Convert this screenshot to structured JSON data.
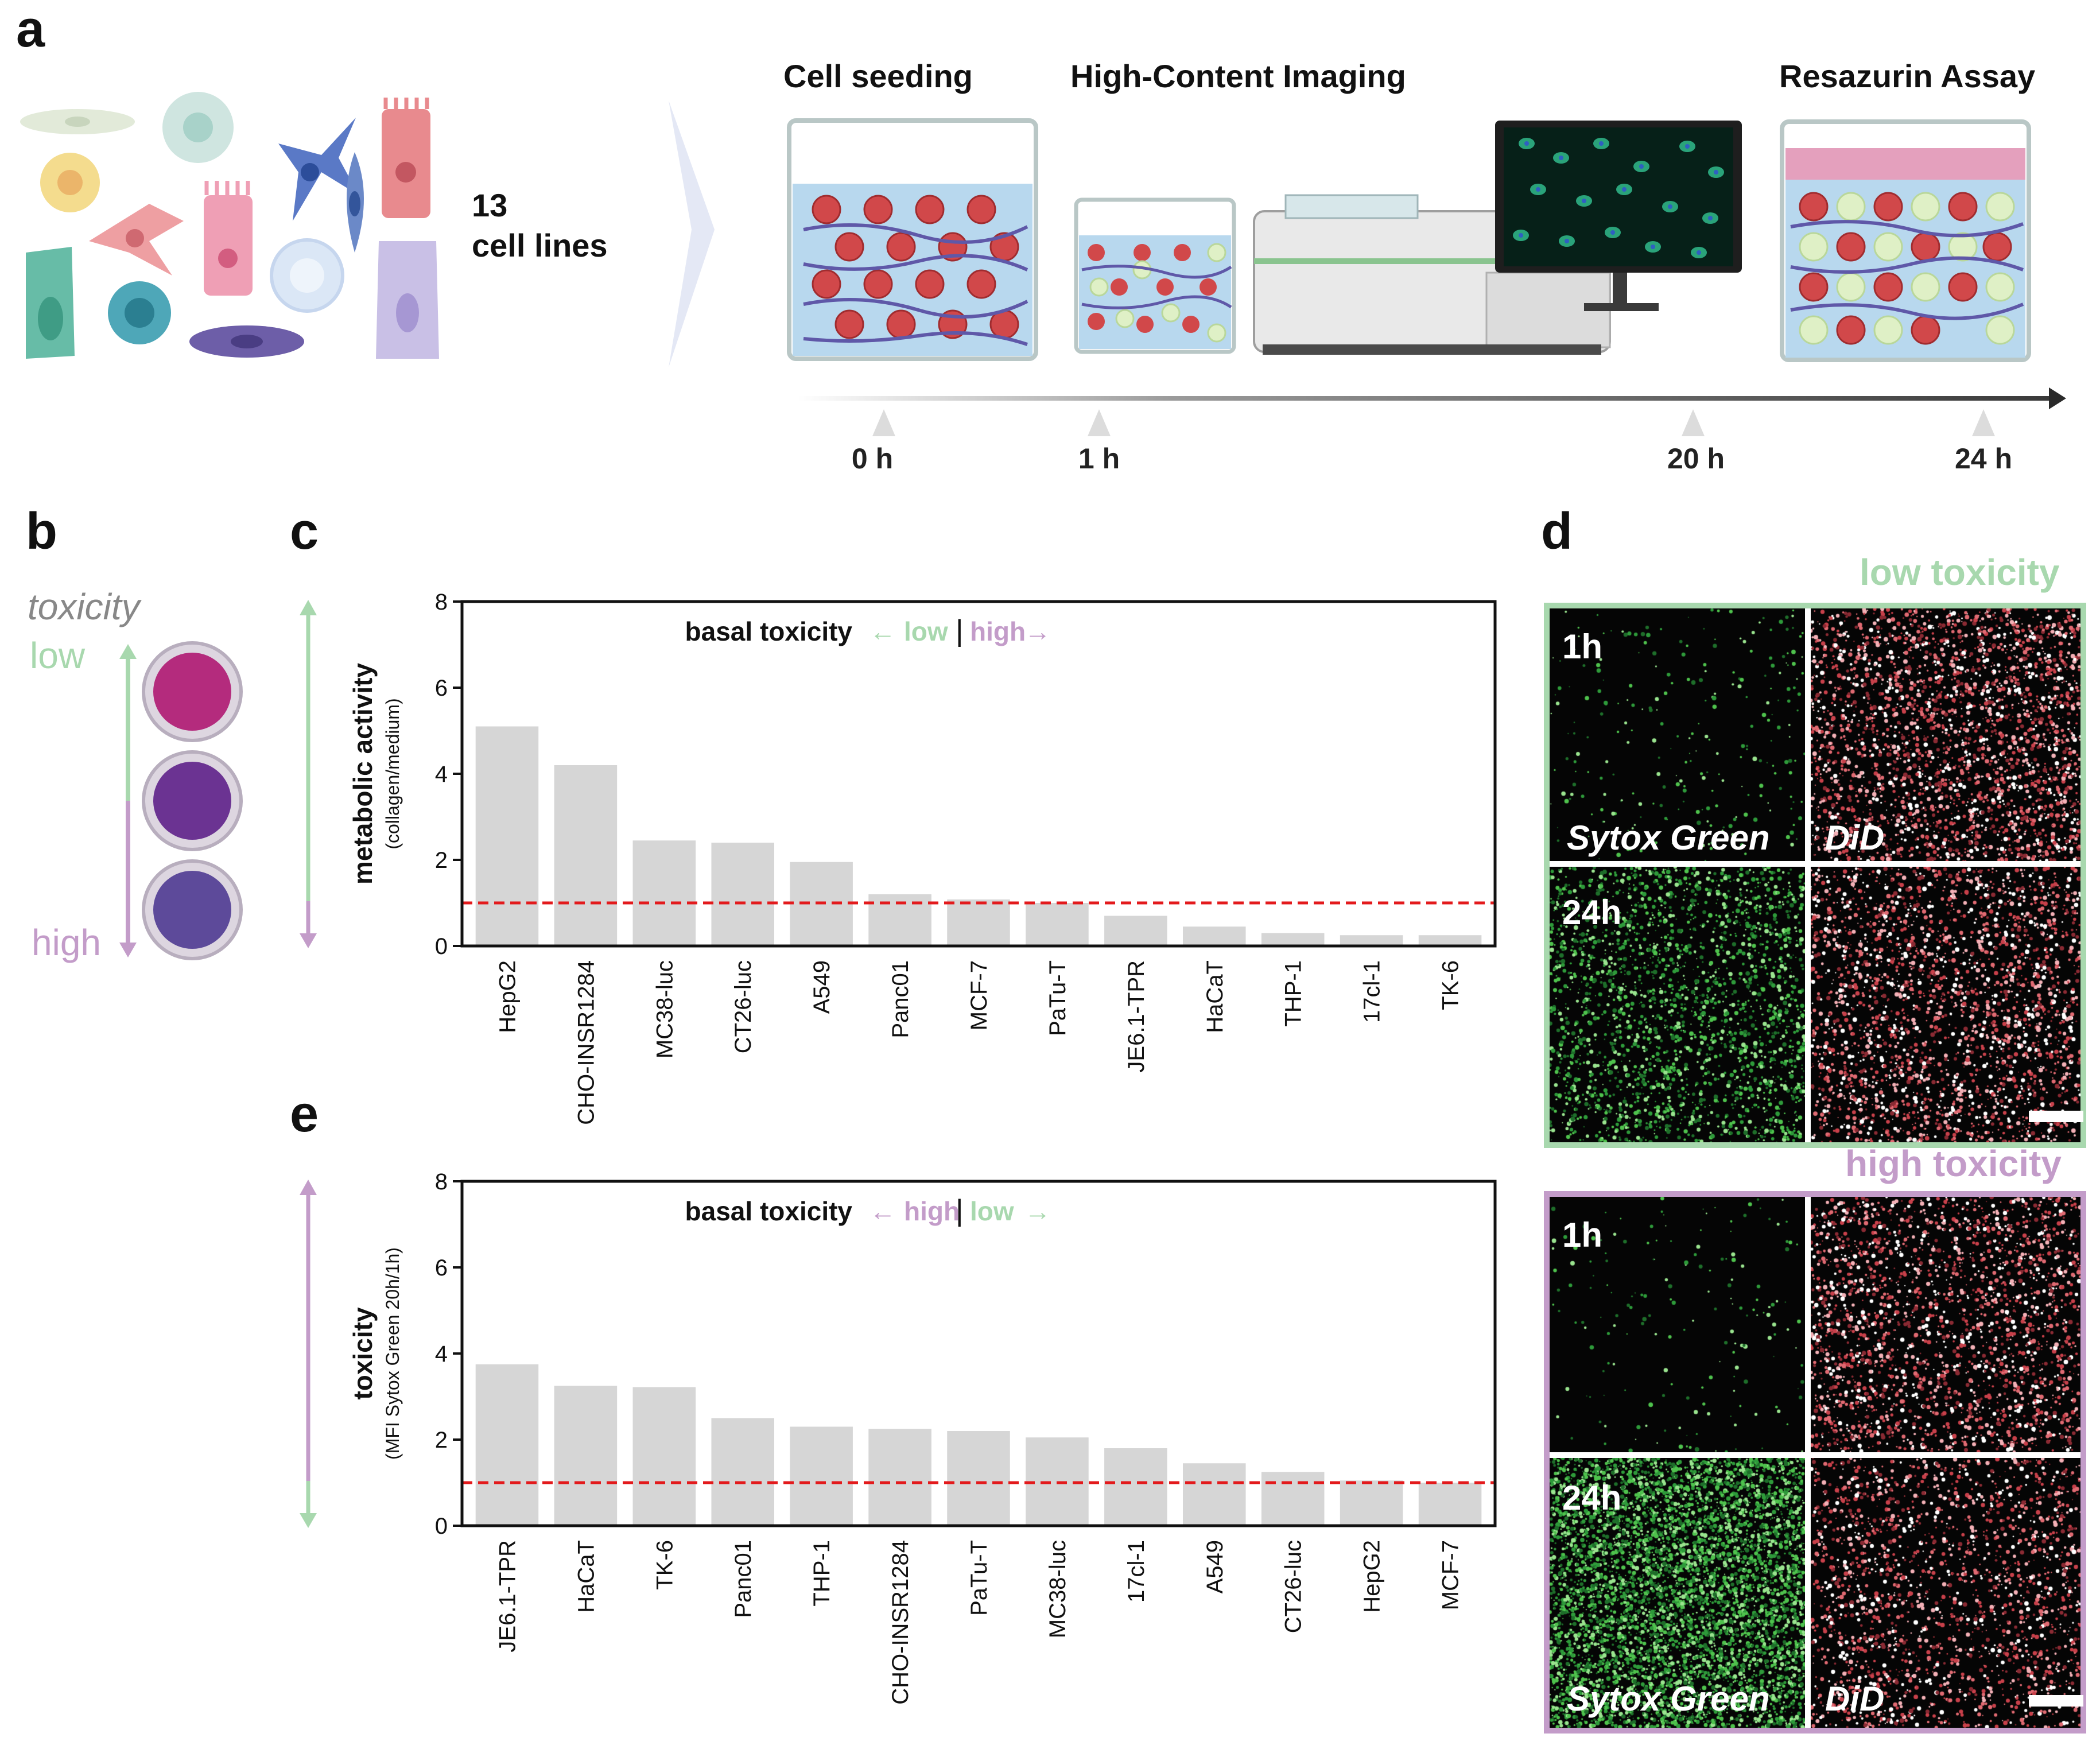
{
  "panels": {
    "a": "a",
    "b": "b",
    "c": "c",
    "d": "d",
    "e": "e"
  },
  "panel_a": {
    "cell_count": "13",
    "cell_lines_label": "cell lines",
    "steps": [
      "Cell seeding",
      "High-Content Imaging",
      "Resazurin Assay"
    ],
    "timepoints": [
      "0 h",
      "1 h",
      "20 h",
      "24 h"
    ]
  },
  "panel_b": {
    "title": "toxicity",
    "low": "low",
    "high": "high",
    "well_colors": [
      "#b42b7d",
      "#6b3392",
      "#5d4a9a"
    ]
  },
  "colors": {
    "low_green": "#a8d8ae",
    "high_purple": "#c39cc9",
    "bar_gray": "#d6d6d6",
    "reference_red": "#e31a1c"
  },
  "chart_data": [
    {
      "type": "bar",
      "panel": "c",
      "ylabel": "metabolic activity",
      "ylabel_sub": "(collagen/medium)",
      "ylim": [
        0,
        8
      ],
      "yticks": [
        0,
        2,
        4,
        6,
        8
      ],
      "reference_line": 1,
      "annotation": {
        "prefix": "basal toxicity",
        "left_word": "low",
        "right_word": "high",
        "left_arrow": "←",
        "right_arrow": "→",
        "divider": "|"
      },
      "categories": [
        "HepG2",
        "CHO-INSR1284",
        "MC38-luc",
        "CT26-luc",
        "A549",
        "Panc01",
        "MCF-7",
        "PaTu-T",
        "JE6.1-TPR",
        "HaCaT",
        "THP-1",
        "17cl-1",
        "TK-6"
      ],
      "values": [
        5.1,
        4.2,
        2.45,
        2.4,
        1.95,
        1.2,
        1.08,
        1.0,
        0.7,
        0.45,
        0.3,
        0.25,
        0.25
      ]
    },
    {
      "type": "bar",
      "panel": "e",
      "ylabel": "toxicity",
      "ylabel_sub": "(MFI Sytox Green 20h/1h)",
      "ylim": [
        0,
        8
      ],
      "yticks": [
        0,
        2,
        4,
        6,
        8
      ],
      "reference_line": 1,
      "annotation": {
        "prefix": "basal toxicity",
        "left_word": "high",
        "right_word": "low",
        "left_arrow": "←",
        "right_arrow": "→",
        "divider": "|"
      },
      "categories": [
        "JE6.1-TPR",
        "HaCaT",
        "TK-6",
        "Panc01",
        "THP-1",
        "CHO-INSR1284",
        "PaTu-T",
        "MC38-luc",
        "17cl-1",
        "A549",
        "CT26-luc",
        "HepG2",
        "MCF-7"
      ],
      "values": [
        3.75,
        3.25,
        3.22,
        2.5,
        2.3,
        2.25,
        2.2,
        2.05,
        1.8,
        1.45,
        1.25,
        1.05,
        1.0
      ]
    }
  ],
  "panel_d": {
    "low_title": "low toxicity",
    "high_title": "high toxicity",
    "t1": "1h",
    "t24": "24h",
    "sytox": "Sytox Green",
    "did": "DiD"
  }
}
